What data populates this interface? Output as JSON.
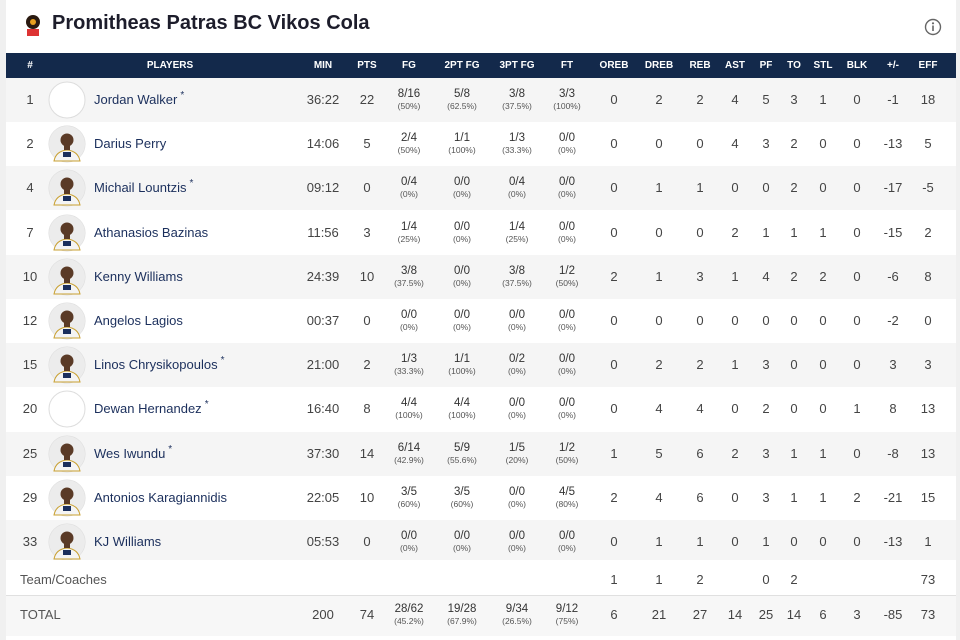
{
  "header": {
    "title": "Promitheas Patras BC Vikos Cola"
  },
  "table": {
    "columns": [
      "#",
      "PLAYERS",
      "MIN",
      "PTS",
      "FG",
      "2PT FG",
      "3PT FG",
      "FT",
      "OREB",
      "DREB",
      "REB",
      "AST",
      "PF",
      "TO",
      "STL",
      "BLK",
      "+/-",
      "EFF"
    ],
    "rows": [
      {
        "no": 1,
        "name": "Jordan Walker",
        "starter": "*",
        "stats": [
          "36:22",
          22,
          {
            "made": "8/16",
            "pct": "(50%)"
          },
          {
            "made": "5/8",
            "pct": "(62.5%)"
          },
          {
            "made": "3/8",
            "pct": "(37.5%)"
          },
          {
            "made": "3/3",
            "pct": "(100%)"
          },
          0,
          2,
          2,
          4,
          5,
          3,
          1,
          0,
          -1,
          18
        ]
      },
      {
        "no": 2,
        "name": "Darius Perry",
        "stats": [
          "14:06",
          5,
          {
            "made": "2/4",
            "pct": "(50%)"
          },
          {
            "made": "1/1",
            "pct": "(100%)"
          },
          {
            "made": "1/3",
            "pct": "(33.3%)"
          },
          {
            "made": "0/0",
            "pct": "(0%)"
          },
          0,
          0,
          0,
          4,
          3,
          2,
          0,
          0,
          -13,
          5
        ]
      },
      {
        "no": 4,
        "name": "Michail Lountzis",
        "starter": "*",
        "stats": [
          "09:12",
          0,
          {
            "made": "0/4",
            "pct": "(0%)"
          },
          {
            "made": "0/0",
            "pct": "(0%)"
          },
          {
            "made": "0/4",
            "pct": "(0%)"
          },
          {
            "made": "0/0",
            "pct": "(0%)"
          },
          0,
          1,
          1,
          0,
          0,
          2,
          0,
          0,
          -17,
          -5
        ]
      },
      {
        "no": 7,
        "name": "Athanasios Bazinas",
        "stats": [
          "11:56",
          3,
          {
            "made": "1/4",
            "pct": "(25%)"
          },
          {
            "made": "0/0",
            "pct": "(0%)"
          },
          {
            "made": "1/4",
            "pct": "(25%)"
          },
          {
            "made": "0/0",
            "pct": "(0%)"
          },
          0,
          0,
          0,
          2,
          1,
          1,
          1,
          0,
          -15,
          2
        ]
      },
      {
        "no": 10,
        "name": "Kenny Williams",
        "stats": [
          "24:39",
          10,
          {
            "made": "3/8",
            "pct": "(37.5%)"
          },
          {
            "made": "0/0",
            "pct": "(0%)"
          },
          {
            "made": "3/8",
            "pct": "(37.5%)"
          },
          {
            "made": "1/2",
            "pct": "(50%)"
          },
          2,
          1,
          3,
          1,
          4,
          2,
          2,
          0,
          -6,
          8
        ]
      },
      {
        "no": 12,
        "name": "Angelos Lagios",
        "stats": [
          "00:37",
          0,
          {
            "made": "0/0",
            "pct": "(0%)"
          },
          {
            "made": "0/0",
            "pct": "(0%)"
          },
          {
            "made": "0/0",
            "pct": "(0%)"
          },
          {
            "made": "0/0",
            "pct": "(0%)"
          },
          0,
          0,
          0,
          0,
          0,
          0,
          0,
          0,
          -2,
          0
        ]
      },
      {
        "no": 15,
        "name": "Linos Chrysikopoulos",
        "starter": "*",
        "stats": [
          "21:00",
          2,
          {
            "made": "1/3",
            "pct": "(33.3%)"
          },
          {
            "made": "1/1",
            "pct": "(100%)"
          },
          {
            "made": "0/2",
            "pct": "(0%)"
          },
          {
            "made": "0/0",
            "pct": "(0%)"
          },
          0,
          2,
          2,
          1,
          3,
          0,
          0,
          0,
          3,
          3
        ]
      },
      {
        "no": 20,
        "name": "Dewan Hernandez",
        "starter": "*",
        "stats": [
          "16:40",
          8,
          {
            "made": "4/4",
            "pct": "(100%)"
          },
          {
            "made": "4/4",
            "pct": "(100%)"
          },
          {
            "made": "0/0",
            "pct": "(0%)"
          },
          {
            "made": "0/0",
            "pct": "(0%)"
          },
          0,
          4,
          4,
          0,
          2,
          0,
          0,
          1,
          8,
          13
        ]
      },
      {
        "no": 25,
        "name": "Wes Iwundu",
        "starter": "*",
        "stats": [
          "37:30",
          14,
          {
            "made": "6/14",
            "pct": "(42.9%)"
          },
          {
            "made": "5/9",
            "pct": "(55.6%)"
          },
          {
            "made": "1/5",
            "pct": "(20%)"
          },
          {
            "made": "1/2",
            "pct": "(50%)"
          },
          1,
          5,
          6,
          2,
          3,
          1,
          1,
          0,
          -8,
          13
        ]
      },
      {
        "no": 29,
        "name": "Antonios Karagiannidis",
        "stats": [
          "22:05",
          10,
          {
            "made": "3/5",
            "pct": "(60%)"
          },
          {
            "made": "3/5",
            "pct": "(60%)"
          },
          {
            "made": "0/0",
            "pct": "(0%)"
          },
          {
            "made": "4/5",
            "pct": "(80%)"
          },
          2,
          4,
          6,
          0,
          3,
          1,
          1,
          2,
          -21,
          15
        ]
      },
      {
        "no": 33,
        "name": "KJ Williams",
        "stats": [
          "05:53",
          0,
          {
            "made": "0/0",
            "pct": "(0%)"
          },
          {
            "made": "0/0",
            "pct": "(0%)"
          },
          {
            "made": "0/0",
            "pct": "(0%)"
          },
          {
            "made": "0/0",
            "pct": "(0%)"
          },
          0,
          1,
          1,
          0,
          1,
          0,
          0,
          0,
          -13,
          1
        ]
      }
    ],
    "team_row": {
      "label": "Team/Coaches",
      "stats": [
        null,
        null,
        null,
        null,
        null,
        null,
        1,
        1,
        2,
        null,
        0,
        2,
        null,
        null,
        null,
        73
      ]
    },
    "total_row": {
      "label": "TOTAL",
      "stats": [
        200,
        74,
        {
          "made": "28/62",
          "pct": "(45.2%)"
        },
        {
          "made": "19/28",
          "pct": "(67.9%)"
        },
        {
          "made": "9/34",
          "pct": "(26.5%)"
        },
        {
          "made": "9/12",
          "pct": "(75%)"
        },
        6,
        21,
        27,
        14,
        25,
        14,
        6,
        3,
        -85,
        73
      ]
    }
  }
}
